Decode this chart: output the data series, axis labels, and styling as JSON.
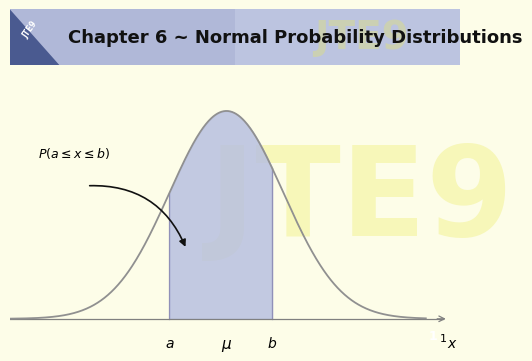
{
  "title": "Chapter 6 ~ Normal Probability Distributions",
  "title_fontsize": 13,
  "title_bg_color": "#B0B8D8",
  "slide_bg_color": "#FDFDE8",
  "watermark_color": "#F0F080",
  "curve_color": "#909090",
  "fill_color": "#B8C0E0",
  "fill_alpha": 0.85,
  "mu": 0.0,
  "sigma": 1.0,
  "a": -1.0,
  "b": 0.8,
  "x_min": -3.8,
  "x_max": 3.5,
  "label_a": "a",
  "label_b": "b",
  "label_mu": "μ",
  "label_x": "x",
  "prob_label": "$P(a \\leq x \\leq b)$",
  "page_number": "1",
  "jte9_label": "JTE9",
  "corner_bg_color": "#4A5A90",
  "title_left_color": "#7080B8"
}
